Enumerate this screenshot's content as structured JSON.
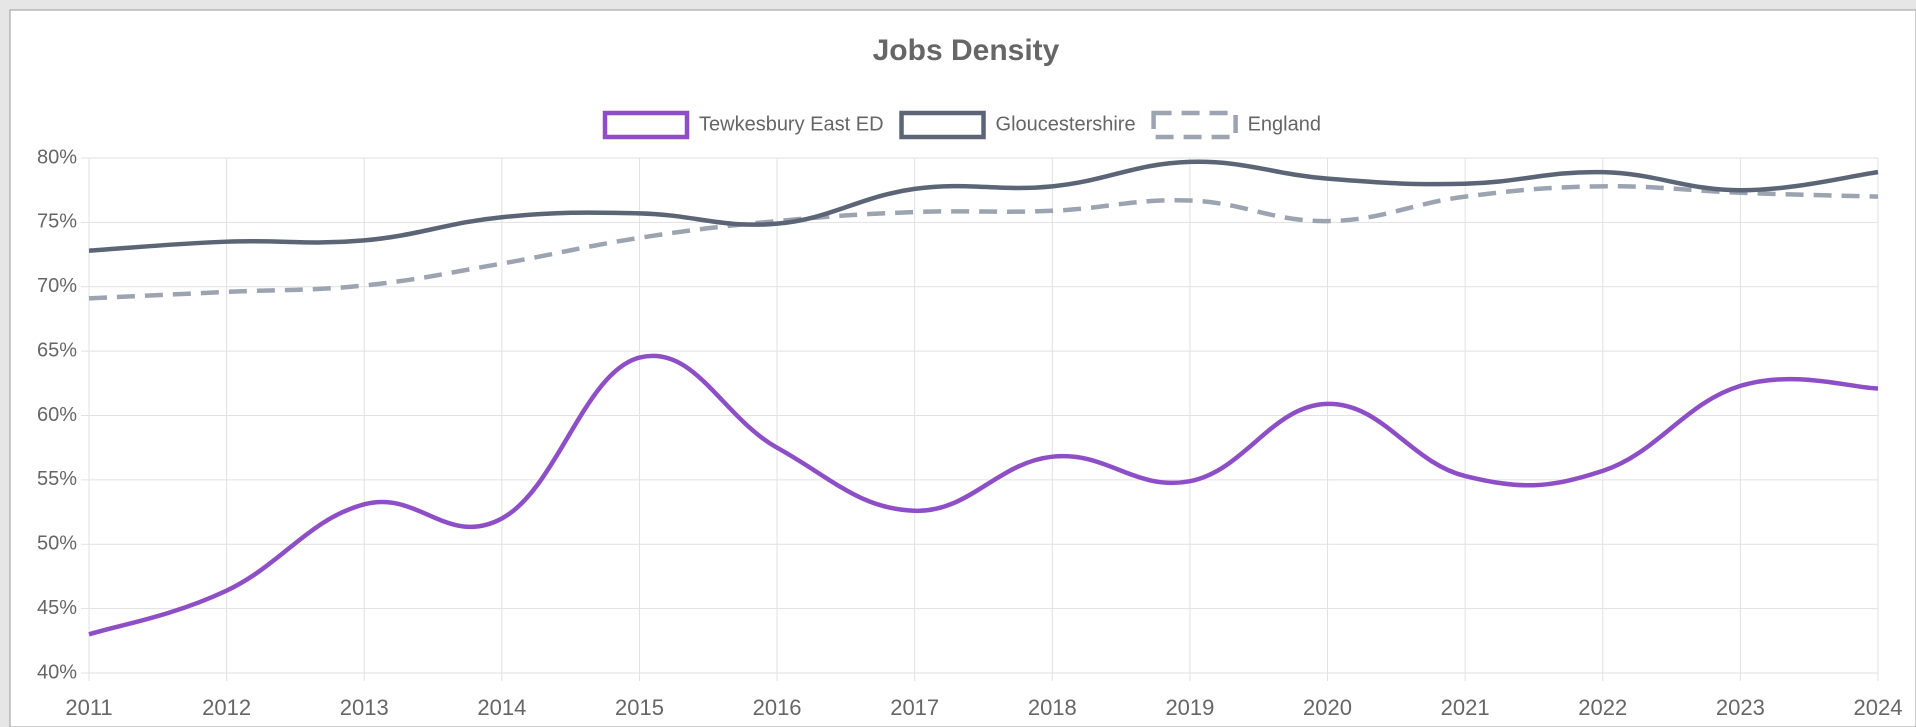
{
  "chart_data": {
    "type": "line",
    "title": "Jobs Density",
    "categories": [
      "2011",
      "2012",
      "2013",
      "2014",
      "2015",
      "2016",
      "2017",
      "2018",
      "2019",
      "2020",
      "2021",
      "2022",
      "2023",
      "2024"
    ],
    "series": [
      {
        "name": "Tewkesbury East ED",
        "color": "#8e4ec6",
        "dash": false,
        "values": [
          43,
          46.4,
          53.1,
          52,
          64.5,
          57.5,
          52.6,
          56.8,
          54.9,
          60.9,
          55.3,
          55.7,
          62.3,
          62.1
        ]
      },
      {
        "name": "Gloucestershire",
        "color": "#5b6576",
        "dash": false,
        "values": [
          72.8,
          73.5,
          73.6,
          75.4,
          75.7,
          74.9,
          77.6,
          77.8,
          79.7,
          78.4,
          78,
          78.9,
          77.5,
          78.9
        ]
      },
      {
        "name": "England",
        "color": "#9ca3b1",
        "dash": true,
        "values": [
          69.1,
          69.6,
          70.1,
          71.8,
          73.8,
          75.1,
          75.8,
          75.9,
          76.7,
          75.1,
          77,
          77.8,
          77.3,
          77
        ]
      }
    ],
    "ylim": [
      40,
      80
    ],
    "yticks": [
      {
        "value": 40,
        "label": "40%"
      },
      {
        "value": 45,
        "label": "45%"
      },
      {
        "value": 50,
        "label": "50%"
      },
      {
        "value": 55,
        "label": "55%"
      },
      {
        "value": 60,
        "label": "60%"
      },
      {
        "value": 65,
        "label": "65%"
      },
      {
        "value": 70,
        "label": "70%"
      },
      {
        "value": 75,
        "label": "75%"
      },
      {
        "value": 80,
        "label": "80%"
      }
    ],
    "grid": true
  }
}
